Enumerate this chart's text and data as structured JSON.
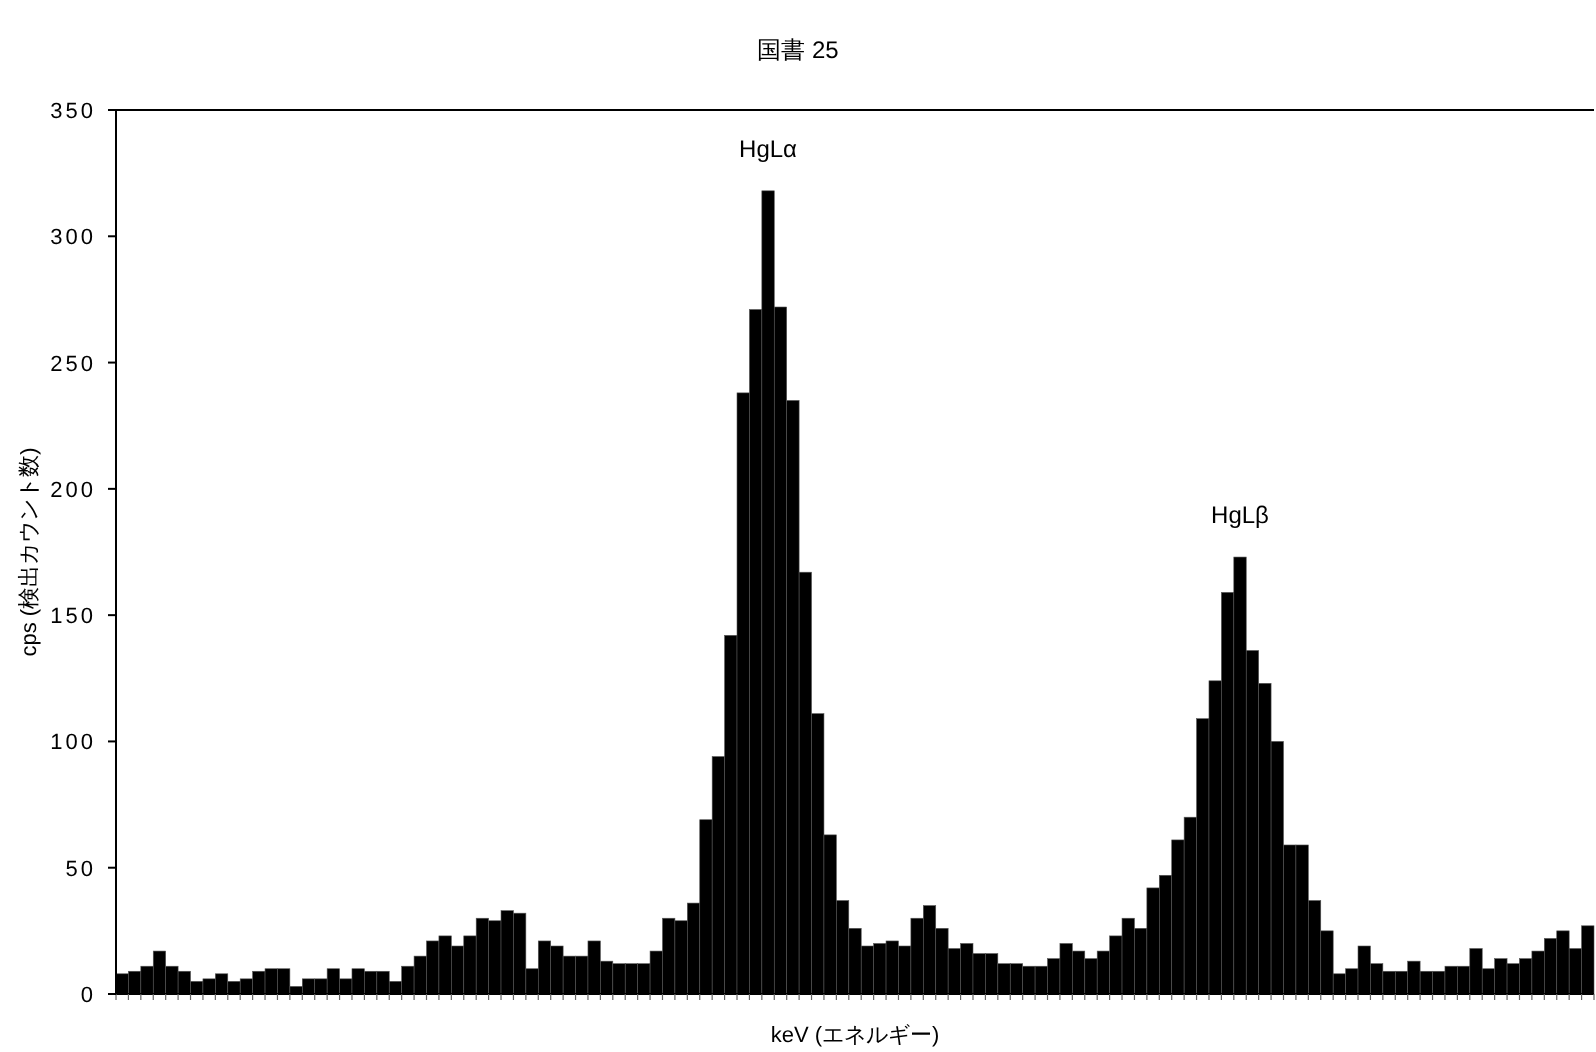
{
  "chart_data": {
    "type": "bar",
    "title": "国書 25",
    "xlabel": "keV (エネルギー)",
    "ylabel": "cps (検出カウント数)",
    "categories": [
      null,
      null,
      null,
      null,
      null,
      null,
      null,
      null,
      null,
      null,
      null,
      null,
      null,
      null,
      null,
      null,
      null,
      null,
      null,
      null,
      null,
      null,
      null,
      null,
      null,
      null,
      null,
      null,
      null,
      null,
      null,
      null,
      null,
      null,
      null,
      null,
      null,
      null,
      null,
      null,
      null,
      null,
      null,
      null,
      null,
      null,
      null,
      null,
      null,
      null,
      null,
      null,
      null,
      null,
      null,
      null,
      null,
      null,
      null,
      null,
      null,
      null,
      null,
      null,
      null,
      null,
      null,
      null,
      null,
      null,
      null,
      null,
      null,
      null,
      null,
      null,
      null,
      null,
      null,
      null,
      null,
      null,
      null,
      null,
      null,
      null,
      null,
      null,
      null,
      null,
      null,
      null,
      null,
      null,
      null,
      null,
      null,
      null,
      null,
      null,
      null,
      null,
      null,
      null,
      null,
      null,
      null,
      null,
      null,
      null,
      null,
      null,
      null,
      null,
      null,
      null,
      null,
      null,
      null
    ],
    "values": [
      8,
      9,
      11,
      17,
      11,
      9,
      5,
      6,
      8,
      5,
      6,
      9,
      10,
      10,
      3,
      6,
      6,
      10,
      6,
      10,
      9,
      9,
      5,
      11,
      15,
      21,
      23,
      19,
      23,
      30,
      29,
      33,
      32,
      10,
      21,
      19,
      15,
      15,
      21,
      13,
      12,
      12,
      12,
      17,
      30,
      29,
      36,
      69,
      94,
      142,
      238,
      271,
      318,
      272,
      235,
      167,
      111,
      63,
      37,
      26,
      19,
      20,
      21,
      19,
      30,
      35,
      26,
      18,
      20,
      16,
      16,
      12,
      12,
      11,
      11,
      14,
      20,
      17,
      14,
      17,
      23,
      30,
      26,
      42,
      47,
      61,
      70,
      109,
      124,
      159,
      173,
      136,
      123,
      100,
      59,
      59,
      37,
      25,
      8,
      10,
      19,
      12,
      9,
      9,
      13,
      9,
      9,
      11,
      11,
      18,
      10,
      14,
      12,
      14,
      17,
      22,
      25,
      18,
      27
    ],
    "color": "#000000",
    "ylim": [
      0,
      350
    ],
    "yticks": [
      0,
      50,
      100,
      150,
      200,
      250,
      300,
      350
    ],
    "annotations": [
      "HgLα",
      "HgLβ"
    ]
  }
}
